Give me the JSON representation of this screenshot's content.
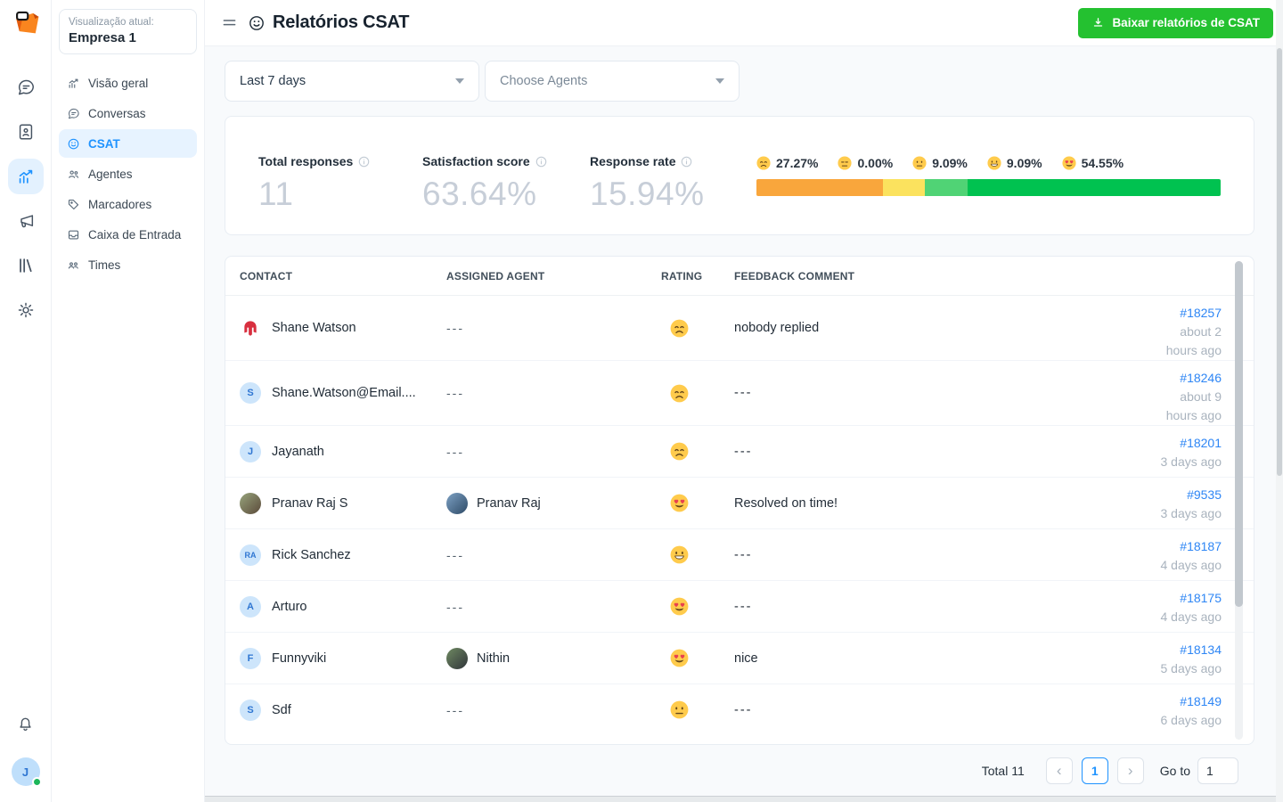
{
  "brand": {
    "name": "Chatwoot"
  },
  "rail": {
    "items": [
      {
        "icon": "conversations-icon",
        "active": false
      },
      {
        "icon": "contacts-icon",
        "active": false
      },
      {
        "icon": "reports-icon",
        "active": true
      },
      {
        "icon": "campaigns-icon",
        "active": false
      },
      {
        "icon": "help-center-icon",
        "active": false
      },
      {
        "icon": "settings-icon",
        "active": false
      }
    ],
    "bottom": {
      "notification_icon": "bell-icon",
      "avatar_letter": "J",
      "status_color": "#1cb65a"
    }
  },
  "sidebar": {
    "context_label": "Visualização atual:",
    "context_value": "Empresa 1",
    "items": [
      {
        "label": "Visão geral",
        "icon": "overview-icon",
        "active": false
      },
      {
        "label": "Conversas",
        "icon": "conversations-icon",
        "active": false
      },
      {
        "label": "CSAT",
        "icon": "csat-icon",
        "active": true
      },
      {
        "label": "Agentes",
        "icon": "agents-icon",
        "active": false
      },
      {
        "label": "Marcadores",
        "icon": "labels-icon",
        "active": false
      },
      {
        "label": "Caixa de Entrada",
        "icon": "inbox-icon",
        "active": false
      },
      {
        "label": "Times",
        "icon": "teams-icon",
        "active": false
      }
    ]
  },
  "header": {
    "title": "Relatórios CSAT",
    "title_icon": "smiley-icon",
    "download_button": {
      "label": "Baixar relatórios de CSAT",
      "icon": "download-icon",
      "color": "#24C130"
    }
  },
  "filters": {
    "date_range_value": "Last 7 days",
    "agents_placeholder": "Choose Agents"
  },
  "metrics": [
    {
      "label": "Total responses",
      "value": "11"
    },
    {
      "label": "Satisfaction score",
      "value": "63.64%"
    },
    {
      "label": "Response rate",
      "value": "15.94%"
    }
  ],
  "distribution": {
    "legend": [
      {
        "emoji": "disappointed-emoji",
        "pct": "27.27%"
      },
      {
        "emoji": "expressionless-emoji",
        "pct": "0.00%"
      },
      {
        "emoji": "neutral-emoji",
        "pct": "9.09%"
      },
      {
        "emoji": "grinning-emoji",
        "pct": "9.09%"
      },
      {
        "emoji": "heart-eyes-emoji",
        "pct": "54.55%"
      }
    ],
    "bar_segments": [
      {
        "value": 27.27,
        "color": "#F9A63C"
      },
      {
        "value": 9.09,
        "color": "#FBE25E"
      },
      {
        "value": 9.09,
        "color": "#50D375"
      },
      {
        "value": 54.55,
        "color": "#00C250"
      }
    ]
  },
  "table": {
    "columns": [
      "CONTACT",
      "ASSIGNED AGENT",
      "RATING",
      "FEEDBACK COMMENT"
    ],
    "rows": [
      {
        "contact": {
          "name": "Shane Watson",
          "avatar": {
            "type": "helmet"
          }
        },
        "agent": {
          "name": "---"
        },
        "rating": "disappointed-emoji",
        "feedback": "nobody replied",
        "conversation": "#18257",
        "age": "about 2 hours ago"
      },
      {
        "contact": {
          "name": "Shane.Watson@Email....",
          "avatar": {
            "type": "initial",
            "text": "S"
          }
        },
        "agent": {
          "name": "---"
        },
        "rating": "disappointed-emoji",
        "feedback": "---",
        "conversation": "#18246",
        "age": "about 9 hours ago"
      },
      {
        "contact": {
          "name": "Jayanath",
          "avatar": {
            "type": "initial",
            "text": "J"
          }
        },
        "agent": {
          "name": "---"
        },
        "rating": "disappointed-emoji",
        "feedback": "---",
        "conversation": "#18201",
        "age": "3 days ago"
      },
      {
        "contact": {
          "name": "Pranav Raj S",
          "avatar": {
            "type": "photo",
            "colors": [
              "#97a47c",
              "#5b4a3a"
            ]
          }
        },
        "agent": {
          "name": "Pranav Raj",
          "avatar": {
            "type": "photo",
            "colors": [
              "#7da1c4",
              "#2e4a66"
            ]
          }
        },
        "rating": "heart-eyes-emoji",
        "feedback": "Resolved on time!",
        "conversation": "#9535",
        "age": "3 days ago"
      },
      {
        "contact": {
          "name": "Rick Sanchez",
          "avatar": {
            "type": "initial",
            "text": "RA"
          }
        },
        "agent": {
          "name": "---"
        },
        "rating": "grinning-emoji",
        "feedback": "---",
        "conversation": "#18187",
        "age": "4 days ago"
      },
      {
        "contact": {
          "name": "Arturo",
          "avatar": {
            "type": "initial",
            "text": "A"
          }
        },
        "agent": {
          "name": "---"
        },
        "rating": "heart-eyes-emoji",
        "feedback": "---",
        "conversation": "#18175",
        "age": "4 days ago"
      },
      {
        "contact": {
          "name": "Funnyviki",
          "avatar": {
            "type": "initial",
            "text": "F"
          }
        },
        "agent": {
          "name": "Nithin",
          "avatar": {
            "type": "photo",
            "colors": [
              "#6f8a62",
              "#30343a"
            ]
          }
        },
        "rating": "heart-eyes-emoji",
        "feedback": "nice",
        "conversation": "#18134",
        "age": "5 days ago"
      },
      {
        "contact": {
          "name": "Sdf",
          "avatar": {
            "type": "initial",
            "text": "S"
          }
        },
        "agent": {
          "name": "---"
        },
        "rating": "neutral-emoji",
        "feedback": "---",
        "conversation": "#18149",
        "age": "6 days ago"
      }
    ]
  },
  "pagination": {
    "total_label": "Total 11",
    "prev_glyph": "‹",
    "page": "1",
    "next_glyph": "›",
    "goto_label": "Go to",
    "goto_value": "1"
  }
}
